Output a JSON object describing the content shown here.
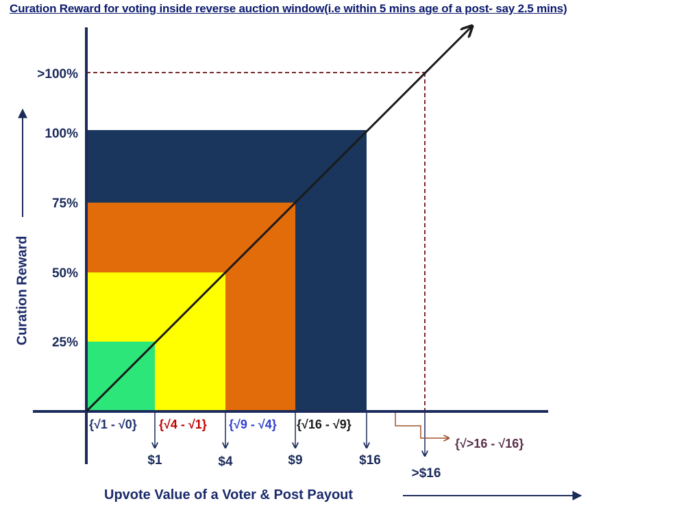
{
  "title": "Curation Reward for voting inside reverse auction window(i.e within 5 mins age of a post- say 2.5 mins)",
  "y_axis_label": "Curation Reward",
  "x_axis_label": "Upvote Value of a Voter & Post Payout",
  "y_ticks": [
    "25%",
    "50%",
    "75%",
    "100%",
    ">100%"
  ],
  "x_values": [
    "$1",
    "$4",
    "$9",
    "$16",
    ">$16"
  ],
  "brackets": [
    {
      "label": "{√1 - √0}",
      "color": "#1f2f6e"
    },
    {
      "label": "{√4 - √1}",
      "color": "#c00000"
    },
    {
      "label": "{√9 - √4}",
      "color": "#2f3fd0"
    },
    {
      "label": "{√16 - √9}",
      "color": "#1a1a1a"
    },
    {
      "label": "{√>16 - √16}",
      "color": "#5a2e4a"
    }
  ],
  "colors": {
    "band_1": "#2de67a",
    "band_2": "#ffff00",
    "band_3": "#e36c0a",
    "band_4": "#1b365d",
    "axis": "#1a2a5a",
    "dashed_guide": "#7b2a2a",
    "brown_arrow": "#a0522d"
  }
}
